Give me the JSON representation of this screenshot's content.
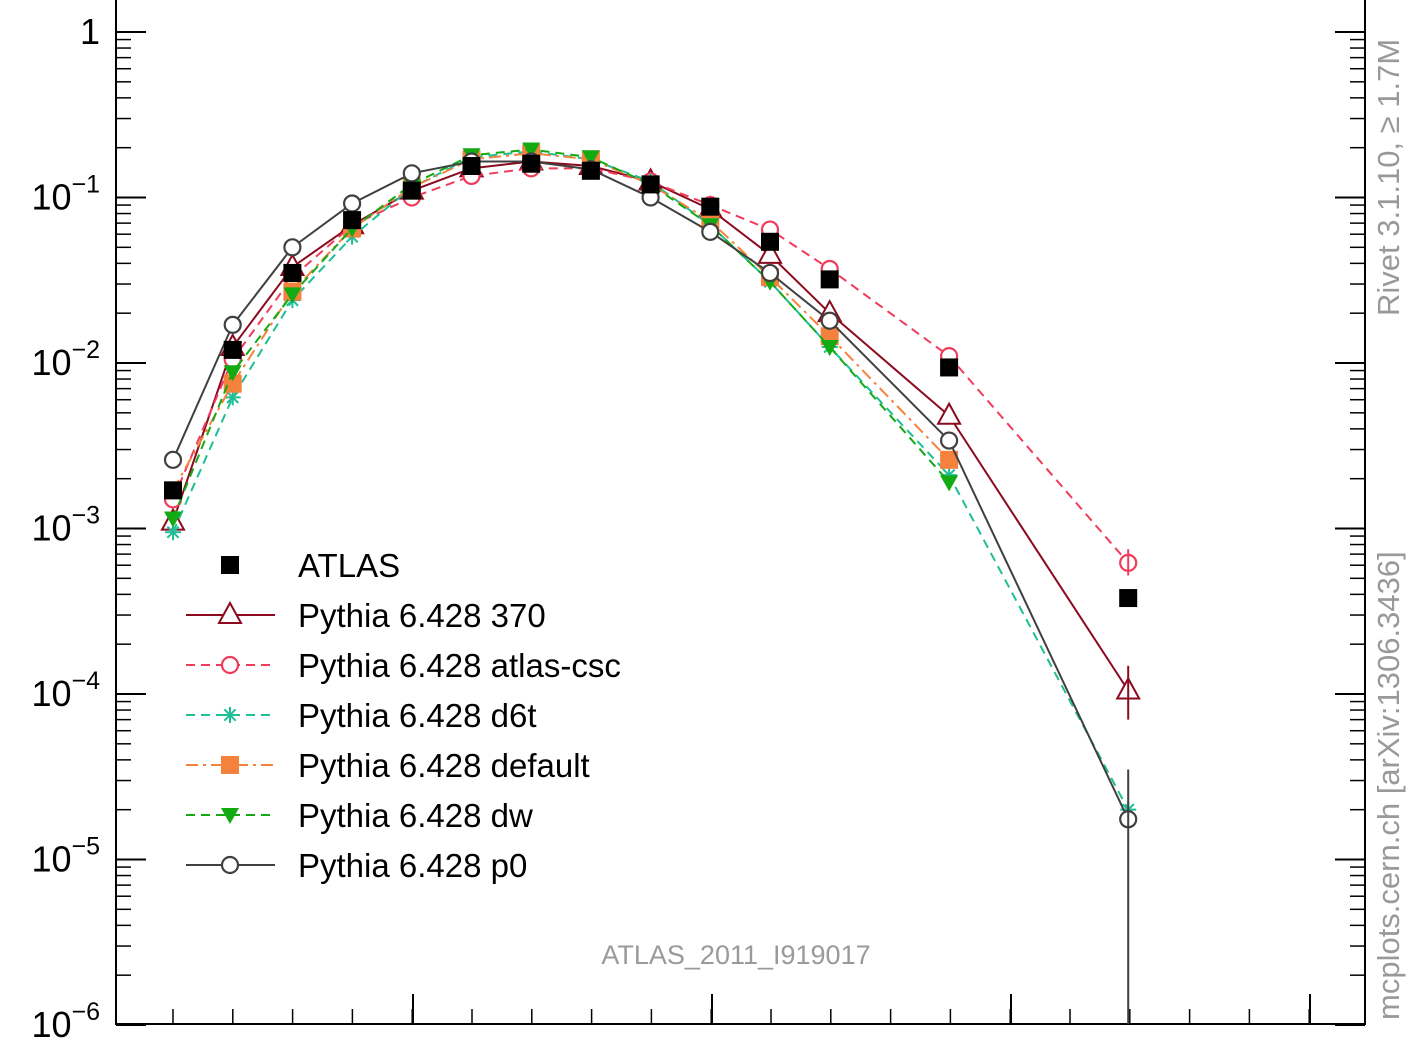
{
  "chart_data": {
    "type": "line",
    "title": "",
    "xlabel": "",
    "ylabel": "",
    "yscale": "log",
    "ylim": [
      1e-06,
      1.5
    ],
    "y_tick_labels": [
      "1",
      "10^-1",
      "10^-2",
      "10^-3",
      "10^-4",
      "10^-5",
      "10^-6"
    ],
    "watermark": "ATLAS_2011_I919017",
    "side_label_1": "Rivet 3.1.10, ≥ 1.7M",
    "side_label_2": "mcplots.cern.ch [arXiv:1306.3436]",
    "x": [
      1,
      2,
      3,
      4,
      5,
      6,
      7,
      8,
      9,
      10,
      11,
      12,
      13,
      14,
      17
    ],
    "series": [
      {
        "name": "ATLAS",
        "color": "#000000",
        "marker": "filled-square",
        "line": "none",
        "values": [
          0.0017,
          0.012,
          0.035,
          0.073,
          0.11,
          0.155,
          0.16,
          0.145,
          0.12,
          0.088,
          0.054,
          0.032,
          null,
          0.0094,
          0.00038
        ]
      },
      {
        "name": "Pythia 6.428 370",
        "color": "#8b0a1e",
        "marker": "open-triangle",
        "line": "solid",
        "values": [
          0.0011,
          0.0125,
          0.038,
          0.068,
          0.11,
          0.15,
          0.165,
          0.155,
          0.125,
          0.085,
          0.045,
          0.02,
          null,
          0.0048,
          0.000105
        ]
      },
      {
        "name": "Pythia 6.428 atlas-csc",
        "color": "#f03c5a",
        "marker": "open-circle",
        "line": "dashed",
        "values": [
          0.0015,
          0.0105,
          0.033,
          0.068,
          0.1,
          0.135,
          0.15,
          0.15,
          0.125,
          0.09,
          0.064,
          0.037,
          null,
          0.011,
          0.00062
        ]
      },
      {
        "name": "Pythia 6.428 d6t",
        "color": "#1ebe96",
        "marker": "asterisk",
        "line": "dashed",
        "values": [
          0.00095,
          0.0062,
          0.024,
          0.058,
          0.115,
          0.175,
          0.19,
          0.17,
          0.125,
          0.068,
          0.031,
          0.0125,
          null,
          0.0021,
          2e-05
        ]
      },
      {
        "name": "Pythia 6.428 default",
        "color": "#f5823c",
        "marker": "filled-square",
        "line": "dashdot",
        "values": [
          0.0017,
          0.0075,
          0.027,
          0.065,
          0.115,
          0.17,
          0.185,
          0.17,
          0.12,
          0.072,
          0.033,
          0.0145,
          null,
          0.0026,
          null
        ]
      },
      {
        "name": "Pythia 6.428 dw",
        "color": "#14aa14",
        "marker": "filled-triangle-down",
        "line": "dashed",
        "values": [
          0.00115,
          0.0088,
          0.026,
          0.065,
          0.12,
          0.18,
          0.195,
          0.175,
          0.12,
          0.068,
          0.031,
          0.0125,
          null,
          0.0019,
          null
        ]
      },
      {
        "name": "Pythia 6.428 p0",
        "color": "#404040",
        "marker": "open-circle",
        "line": "solid",
        "values": [
          0.0026,
          0.017,
          0.05,
          0.092,
          0.14,
          0.165,
          0.165,
          0.148,
          0.1,
          0.062,
          0.035,
          0.018,
          null,
          0.0034,
          1.75e-05
        ]
      }
    ]
  }
}
